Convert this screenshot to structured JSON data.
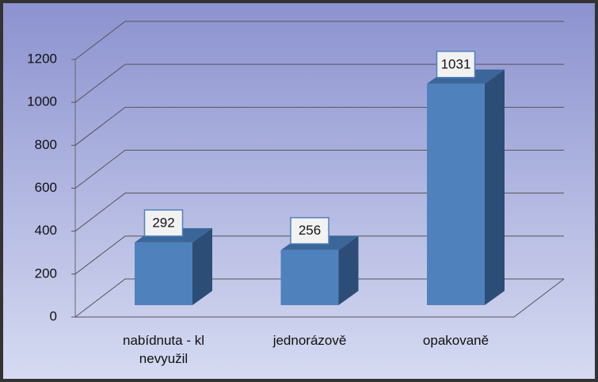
{
  "chart_data": {
    "type": "bar3d",
    "categories": [
      "nabídnuta - kl nevyužil",
      "jednorázově",
      "opakovaně"
    ],
    "values": [
      292,
      256,
      1031
    ],
    "color": "#4f81bd",
    "ylim": [
      0,
      1200
    ],
    "yticks": [
      0,
      200,
      400,
      600,
      800,
      1000,
      1200
    ],
    "grid": true
  }
}
